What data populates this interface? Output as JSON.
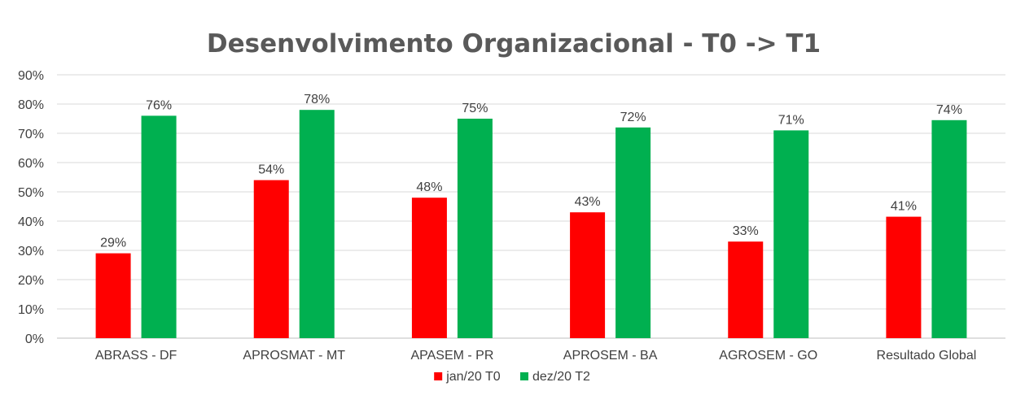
{
  "chart_data": {
    "type": "bar",
    "title": "Desenvolvimento Organizacional - T0 -> T1",
    "xlabel": "",
    "ylabel": "",
    "ylim": [
      0,
      90
    ],
    "yticks": [
      "0%",
      "10%",
      "20%",
      "30%",
      "40%",
      "50%",
      "60%",
      "70%",
      "80%",
      "90%"
    ],
    "grid": true,
    "legend_position": "bottom",
    "categories": [
      "ABRASS - DF",
      "APROSMAT - MT",
      "APASEM - PR",
      "APROSEM - BA",
      "AGROSEM - GO",
      "Resultado Global"
    ],
    "series": [
      {
        "name": "jan/20 T0",
        "color": "#ff0000",
        "values": [
          29,
          54,
          48,
          43,
          33,
          41.5
        ],
        "labels": [
          "29%",
          "54%",
          "48%",
          "43%",
          "33%",
          "41%"
        ]
      },
      {
        "name": "dez/20 T2",
        "color": "#00b050",
        "values": [
          76,
          78,
          75,
          72,
          71,
          74.5
        ],
        "labels": [
          "76%",
          "78%",
          "75%",
          "72%",
          "71%",
          "74%"
        ]
      }
    ]
  }
}
